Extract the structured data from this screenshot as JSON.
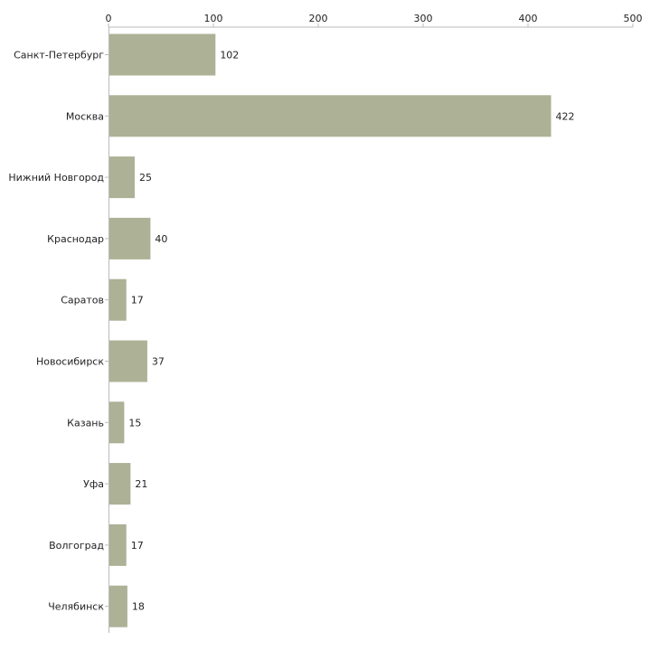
{
  "chart_data": {
    "type": "bar",
    "orientation": "horizontal",
    "title": "",
    "xlabel": "",
    "ylabel": "",
    "xlim": [
      0,
      500
    ],
    "ticks": [
      0,
      100,
      200,
      300,
      400,
      500
    ],
    "tick_labels": [
      "0",
      "100",
      "200",
      "300",
      "400",
      "500"
    ],
    "grid": false,
    "bar_color": "#adb196",
    "categories": [
      "Санкт-Петербург",
      "Москва",
      "Нижний Новгород",
      "Краснодар",
      "Саратов",
      "Новосибирск",
      "Казань",
      "Уфа",
      "Волгоград",
      "Челябинск"
    ],
    "values": [
      102,
      422,
      25,
      40,
      17,
      37,
      15,
      21,
      17,
      18
    ],
    "value_labels": [
      "102",
      "422",
      "25",
      "40",
      "17",
      "37",
      "15",
      "21",
      "17",
      "18"
    ]
  }
}
